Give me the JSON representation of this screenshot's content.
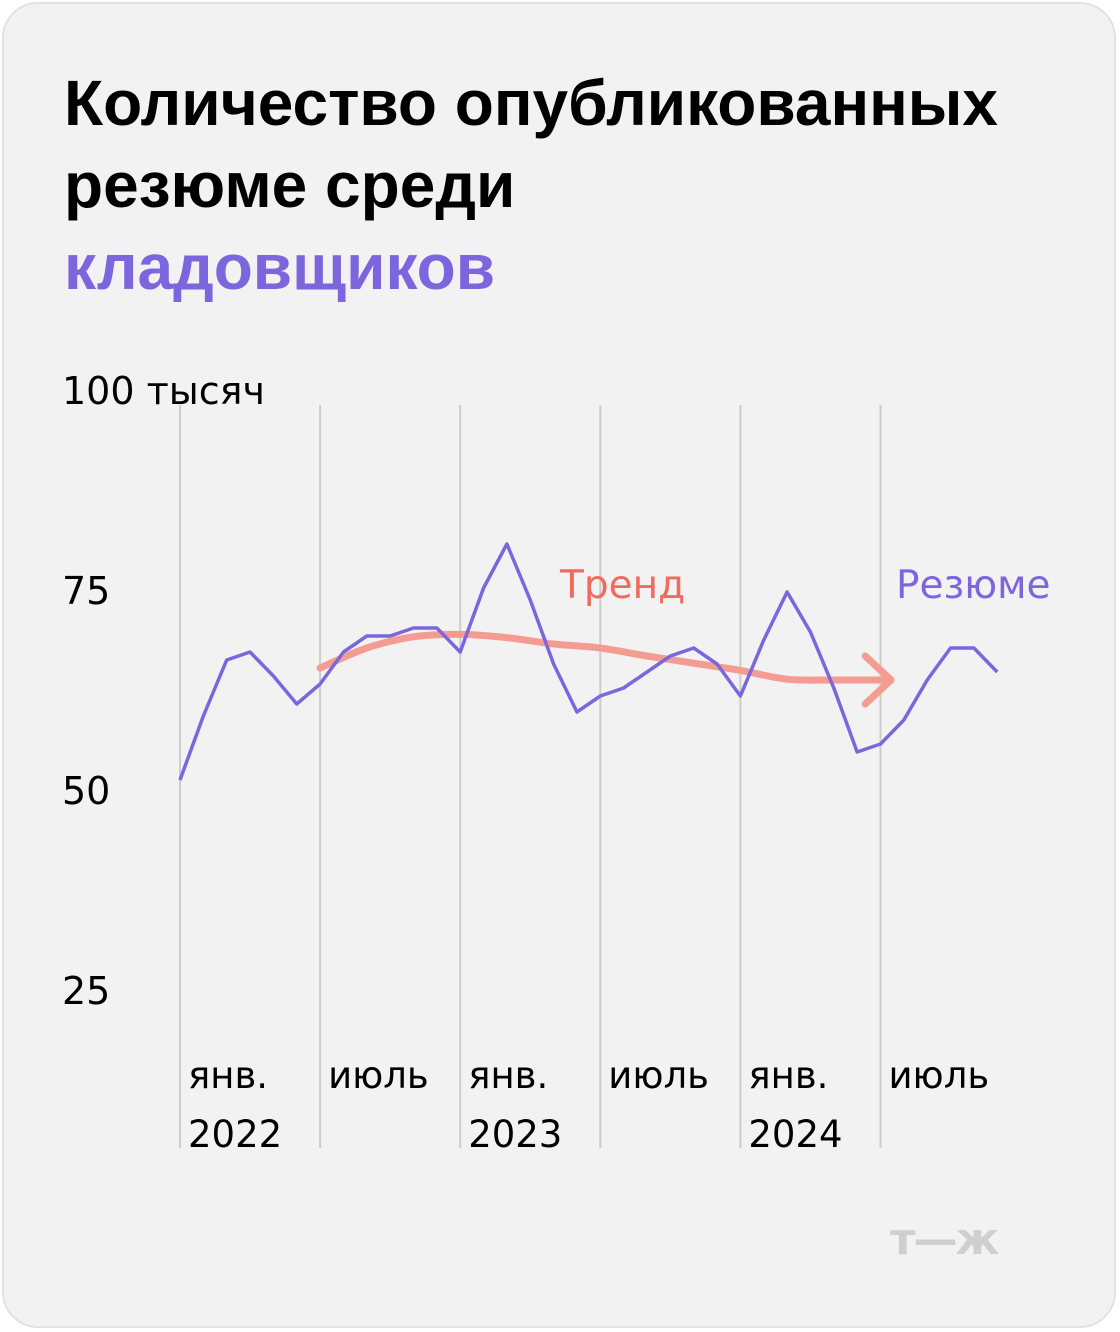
{
  "title": {
    "line1": "Количество опубликованных",
    "line2": "резюме среди",
    "line3": "кладовщиков"
  },
  "logo": "т—ж",
  "colors": {
    "series": "#7b66dd",
    "trend": "#f49c91",
    "trend_label": "#ef6b5e",
    "grid": "#cccccc"
  },
  "chart_data": {
    "type": "line",
    "y_unit_label": "100 тысяч",
    "y_ticks": [
      "100 тысяч",
      "75",
      "50",
      "25"
    ],
    "ylim": [
      25,
      100
    ],
    "x_ticks": [
      {
        "line1": "янв.",
        "line2": "2022"
      },
      {
        "line1": "июль",
        "line2": ""
      },
      {
        "line1": "янв.",
        "line2": "2023"
      },
      {
        "line1": "июль",
        "line2": ""
      },
      {
        "line1": "янв.",
        "line2": "2024"
      },
      {
        "line1": "июль",
        "line2": ""
      }
    ],
    "x": [
      "2022-01",
      "2022-02",
      "2022-03",
      "2022-04",
      "2022-05",
      "2022-06",
      "2022-07",
      "2022-08",
      "2022-09",
      "2022-10",
      "2022-11",
      "2022-12",
      "2023-01",
      "2023-02",
      "2023-03",
      "2023-04",
      "2023-05",
      "2023-06",
      "2023-07",
      "2023-08",
      "2023-09",
      "2023-10",
      "2023-11",
      "2023-12",
      "2024-01",
      "2024-02",
      "2024-03",
      "2024-04",
      "2024-05",
      "2024-06",
      "2024-07",
      "2024-08",
      "2024-09",
      "2024-10",
      "2024-11",
      "2024-12"
    ],
    "series": [
      {
        "name": "Резюме",
        "values": [
          51,
          59,
          66,
          67,
          64,
          60.5,
          63,
          67,
          69,
          69,
          70,
          70,
          67,
          75,
          80.5,
          73.5,
          65.5,
          59.5,
          61.5,
          62.5,
          64.5,
          66.5,
          67.5,
          65.5,
          61.5,
          68.5,
          74.5,
          69.5,
          62.5,
          54.5,
          55.5,
          58.5,
          63.5,
          67.5,
          67.5,
          64.5
        ]
      }
    ],
    "trend": {
      "name": "Тренд",
      "x": [
        "2022-07",
        "2022-09",
        "2022-11",
        "2023-01",
        "2023-03",
        "2023-05",
        "2023-07",
        "2023-09",
        "2023-11",
        "2024-01",
        "2024-03",
        "2024-05",
        "2024-06"
      ],
      "values": [
        65,
        67.5,
        68.9,
        69.2,
        68.8,
        68,
        67.5,
        66.5,
        65.6,
        64.7,
        63.6,
        63.5,
        63.5
      ]
    },
    "legend": [
      "Тренд",
      "Резюме"
    ]
  }
}
